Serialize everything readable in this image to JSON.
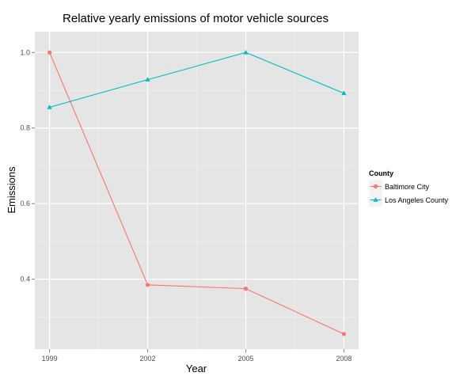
{
  "chart_data": {
    "type": "line",
    "title": "Relative yearly emissions of motor vehicle sources",
    "xlabel": "Year",
    "ylabel": "Emissions",
    "x": [
      1999,
      2002,
      2005,
      2008
    ],
    "x_tick_labels": [
      "1999",
      "2002",
      "2005",
      "2008"
    ],
    "y_ticks": [
      0.4,
      0.6,
      0.8,
      1.0
    ],
    "y_tick_labels": [
      "0.4",
      "0.6",
      "0.8",
      "1.0"
    ],
    "xlim": [
      1998.55,
      2008.45
    ],
    "ylim": [
      0.215,
      1.055
    ],
    "grid": true,
    "legend": {
      "title": "County",
      "position": "right"
    },
    "series": [
      {
        "name": "Baltimore City",
        "color": "#F8766D",
        "marker": "circle",
        "values": [
          1.0,
          0.385,
          0.375,
          0.255
        ]
      },
      {
        "name": "Los Angeles County",
        "color": "#00BFC4",
        "marker": "triangle",
        "values": [
          0.855,
          0.928,
          1.0,
          0.892
        ]
      }
    ]
  }
}
